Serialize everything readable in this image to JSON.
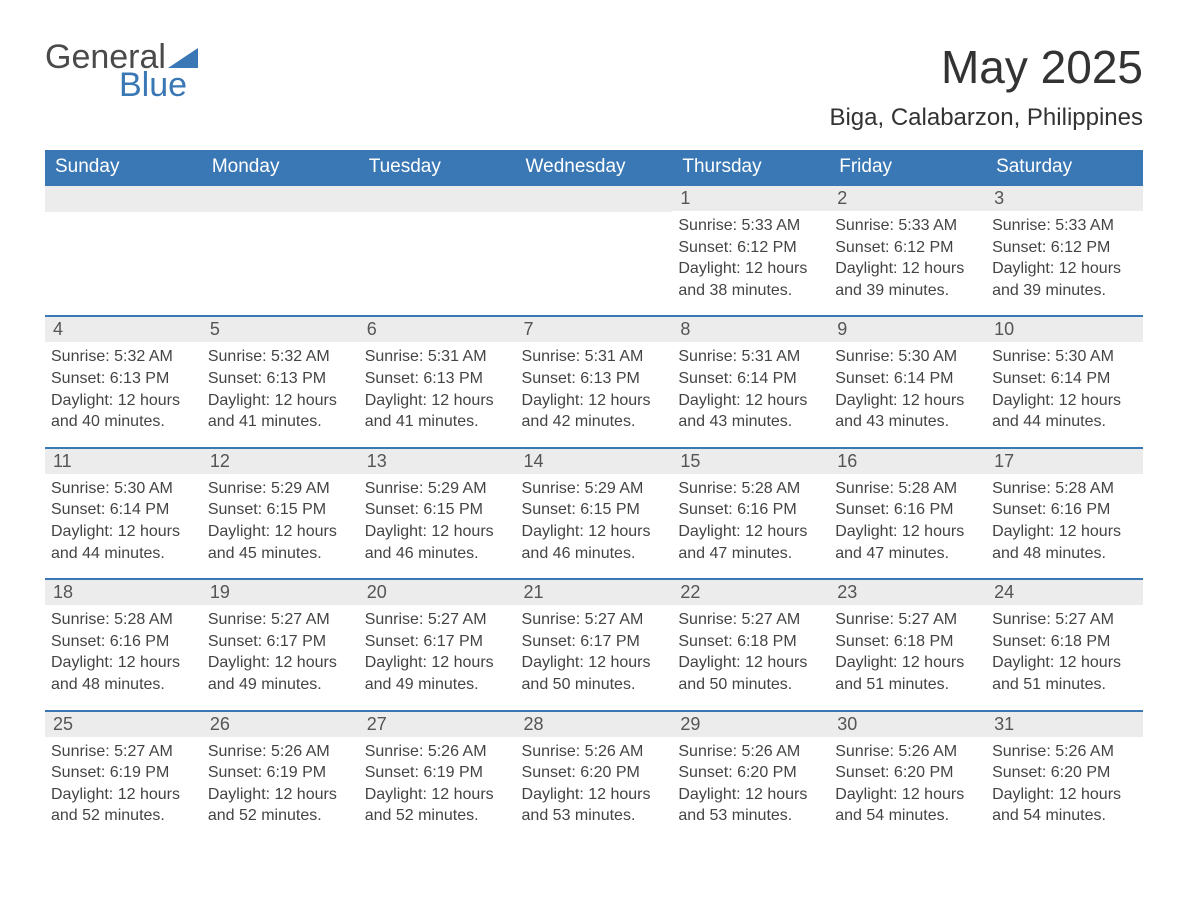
{
  "logo": {
    "text1": "General",
    "text2": "Blue"
  },
  "title": "May 2025",
  "location": "Biga, Calabarzon, Philippines",
  "colors": {
    "header_bg": "#3a78b5",
    "header_text": "#ffffff",
    "daynum_bg": "#ececec",
    "border": "#3a78b5",
    "body_text": "#444444",
    "page_bg": "#ffffff"
  },
  "font": {
    "family": "Arial",
    "title_size": 46,
    "location_size": 24,
    "header_size": 19,
    "daynum_size": 18,
    "body_size": 16
  },
  "columns": [
    "Sunday",
    "Monday",
    "Tuesday",
    "Wednesday",
    "Thursday",
    "Friday",
    "Saturday"
  ],
  "weeks": [
    [
      null,
      null,
      null,
      null,
      {
        "n": "1",
        "sunrise": "5:33 AM",
        "sunset": "6:12 PM",
        "daylight": "12 hours and 38 minutes."
      },
      {
        "n": "2",
        "sunrise": "5:33 AM",
        "sunset": "6:12 PM",
        "daylight": "12 hours and 39 minutes."
      },
      {
        "n": "3",
        "sunrise": "5:33 AM",
        "sunset": "6:12 PM",
        "daylight": "12 hours and 39 minutes."
      }
    ],
    [
      {
        "n": "4",
        "sunrise": "5:32 AM",
        "sunset": "6:13 PM",
        "daylight": "12 hours and 40 minutes."
      },
      {
        "n": "5",
        "sunrise": "5:32 AM",
        "sunset": "6:13 PM",
        "daylight": "12 hours and 41 minutes."
      },
      {
        "n": "6",
        "sunrise": "5:31 AM",
        "sunset": "6:13 PM",
        "daylight": "12 hours and 41 minutes."
      },
      {
        "n": "7",
        "sunrise": "5:31 AM",
        "sunset": "6:13 PM",
        "daylight": "12 hours and 42 minutes."
      },
      {
        "n": "8",
        "sunrise": "5:31 AM",
        "sunset": "6:14 PM",
        "daylight": "12 hours and 43 minutes."
      },
      {
        "n": "9",
        "sunrise": "5:30 AM",
        "sunset": "6:14 PM",
        "daylight": "12 hours and 43 minutes."
      },
      {
        "n": "10",
        "sunrise": "5:30 AM",
        "sunset": "6:14 PM",
        "daylight": "12 hours and 44 minutes."
      }
    ],
    [
      {
        "n": "11",
        "sunrise": "5:30 AM",
        "sunset": "6:14 PM",
        "daylight": "12 hours and 44 minutes."
      },
      {
        "n": "12",
        "sunrise": "5:29 AM",
        "sunset": "6:15 PM",
        "daylight": "12 hours and 45 minutes."
      },
      {
        "n": "13",
        "sunrise": "5:29 AM",
        "sunset": "6:15 PM",
        "daylight": "12 hours and 46 minutes."
      },
      {
        "n": "14",
        "sunrise": "5:29 AM",
        "sunset": "6:15 PM",
        "daylight": "12 hours and 46 minutes."
      },
      {
        "n": "15",
        "sunrise": "5:28 AM",
        "sunset": "6:16 PM",
        "daylight": "12 hours and 47 minutes."
      },
      {
        "n": "16",
        "sunrise": "5:28 AM",
        "sunset": "6:16 PM",
        "daylight": "12 hours and 47 minutes."
      },
      {
        "n": "17",
        "sunrise": "5:28 AM",
        "sunset": "6:16 PM",
        "daylight": "12 hours and 48 minutes."
      }
    ],
    [
      {
        "n": "18",
        "sunrise": "5:28 AM",
        "sunset": "6:16 PM",
        "daylight": "12 hours and 48 minutes."
      },
      {
        "n": "19",
        "sunrise": "5:27 AM",
        "sunset": "6:17 PM",
        "daylight": "12 hours and 49 minutes."
      },
      {
        "n": "20",
        "sunrise": "5:27 AM",
        "sunset": "6:17 PM",
        "daylight": "12 hours and 49 minutes."
      },
      {
        "n": "21",
        "sunrise": "5:27 AM",
        "sunset": "6:17 PM",
        "daylight": "12 hours and 50 minutes."
      },
      {
        "n": "22",
        "sunrise": "5:27 AM",
        "sunset": "6:18 PM",
        "daylight": "12 hours and 50 minutes."
      },
      {
        "n": "23",
        "sunrise": "5:27 AM",
        "sunset": "6:18 PM",
        "daylight": "12 hours and 51 minutes."
      },
      {
        "n": "24",
        "sunrise": "5:27 AM",
        "sunset": "6:18 PM",
        "daylight": "12 hours and 51 minutes."
      }
    ],
    [
      {
        "n": "25",
        "sunrise": "5:27 AM",
        "sunset": "6:19 PM",
        "daylight": "12 hours and 52 minutes."
      },
      {
        "n": "26",
        "sunrise": "5:26 AM",
        "sunset": "6:19 PM",
        "daylight": "12 hours and 52 minutes."
      },
      {
        "n": "27",
        "sunrise": "5:26 AM",
        "sunset": "6:19 PM",
        "daylight": "12 hours and 52 minutes."
      },
      {
        "n": "28",
        "sunrise": "5:26 AM",
        "sunset": "6:20 PM",
        "daylight": "12 hours and 53 minutes."
      },
      {
        "n": "29",
        "sunrise": "5:26 AM",
        "sunset": "6:20 PM",
        "daylight": "12 hours and 53 minutes."
      },
      {
        "n": "30",
        "sunrise": "5:26 AM",
        "sunset": "6:20 PM",
        "daylight": "12 hours and 54 minutes."
      },
      {
        "n": "31",
        "sunrise": "5:26 AM",
        "sunset": "6:20 PM",
        "daylight": "12 hours and 54 minutes."
      }
    ]
  ],
  "labels": {
    "sunrise": "Sunrise: ",
    "sunset": "Sunset: ",
    "daylight": "Daylight: "
  }
}
